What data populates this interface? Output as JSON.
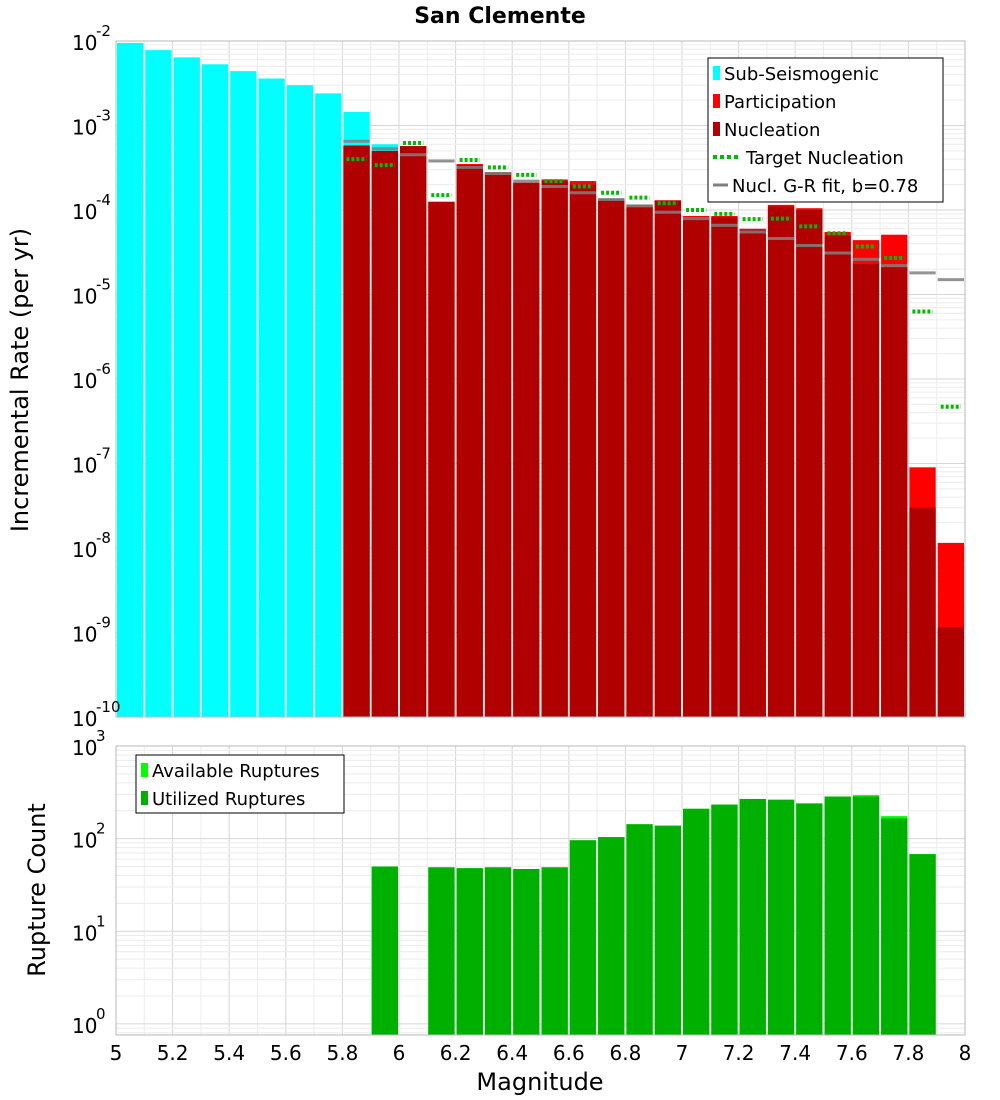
{
  "title": "San Clemente",
  "colors": {
    "sub_seismogenic": "#00ffff",
    "participation": "#ff0000",
    "nucleation": "#b00000",
    "target_nucleation": "#00bb00",
    "gr_fit": "#808080",
    "available": "#00ff00",
    "utilized": "#00b000"
  },
  "chart_data": [
    {
      "type": "bar",
      "title": "San Clemente",
      "xlabel": "Magnitude",
      "ylabel": "Incremental Rate (per yr)",
      "xlim": [
        5,
        8
      ],
      "ylim_log10": [
        -10,
        -2
      ],
      "bin_width": 0.1,
      "y_ticks": [
        {
          "base": "10",
          "exp": "-10"
        },
        {
          "base": "10",
          "exp": "-9"
        },
        {
          "base": "10",
          "exp": "-8"
        },
        {
          "base": "10",
          "exp": "-7"
        },
        {
          "base": "10",
          "exp": "-6"
        },
        {
          "base": "10",
          "exp": "-5"
        },
        {
          "base": "10",
          "exp": "-4"
        },
        {
          "base": "10",
          "exp": "-3"
        },
        {
          "base": "10",
          "exp": "-2"
        }
      ],
      "legend": [
        "Sub-Seismogenic",
        "Participation",
        "Nucleation",
        "Target Nucleation",
        "Nucl. G-R fit, b=0.78"
      ],
      "sub_seismogenic": {
        "x": [
          5.05,
          5.15,
          5.25,
          5.35,
          5.45,
          5.55,
          5.65,
          5.75,
          5.85,
          5.95
        ],
        "values": [
          0.0095,
          0.0078,
          0.0064,
          0.0053,
          0.0044,
          0.0036,
          0.003,
          0.0024,
          0.00145,
          0.0006
        ]
      },
      "participation": {
        "x": [
          5.85,
          5.95,
          6.05,
          6.15,
          6.25,
          6.35,
          6.45,
          6.55,
          6.65,
          6.75,
          6.85,
          6.95,
          7.05,
          7.15,
          7.25,
          7.35,
          7.45,
          7.55,
          7.65,
          7.75,
          7.85,
          7.95
        ],
        "values": [
          0.00058,
          0.0005,
          0.00057,
          0.000125,
          0.00035,
          0.00028,
          0.00021,
          0.00023,
          0.00022,
          0.000135,
          0.000115,
          0.00013,
          8.5e-05,
          8.5e-05,
          6e-05,
          0.000115,
          0.000105,
          5.5e-05,
          4.4e-05,
          5.1e-05,
          9e-08,
          1.15e-08
        ]
      },
      "nucleation": {
        "x": [
          5.85,
          5.95,
          6.05,
          6.15,
          6.25,
          6.35,
          6.45,
          6.55,
          6.65,
          6.75,
          6.85,
          6.95,
          7.05,
          7.15,
          7.25,
          7.35,
          7.45,
          7.55,
          7.65,
          7.75,
          7.85,
          7.95
        ],
        "values": [
          0.00058,
          0.0005,
          0.00057,
          0.000125,
          0.00034,
          0.00028,
          0.00021,
          0.00022,
          0.0002,
          0.00013,
          0.00011,
          0.00013,
          8.2e-05,
          8.2e-05,
          5.8e-05,
          0.00011,
          0.0001,
          5e-05,
          2.3e-05,
          2.1e-05,
          3e-08,
          1.15e-09
        ]
      },
      "target_nucleation": {
        "x": [
          5.85,
          5.95,
          6.05,
          6.15,
          6.25,
          6.35,
          6.45,
          6.55,
          6.65,
          6.75,
          6.85,
          6.95,
          7.05,
          7.15,
          7.25,
          7.35,
          7.45,
          7.55,
          7.65,
          7.75,
          7.85,
          7.95
        ],
        "values": [
          0.0004,
          0.00034,
          0.00062,
          0.00015,
          0.00039,
          0.00032,
          0.00026,
          0.00022,
          0.00019,
          0.00016,
          0.00014,
          0.00012,
          0.0001,
          9e-05,
          7.8e-05,
          7.9e-05,
          6.4e-05,
          5.3e-05,
          3.7e-05,
          2.7e-05,
          6.3e-06,
          4.7e-07
        ]
      },
      "gr_fit": {
        "x": [
          5.85,
          5.95,
          6.05,
          6.15,
          6.25,
          6.35,
          6.45,
          6.55,
          6.65,
          6.75,
          6.85,
          6.95,
          7.05,
          7.15,
          7.25,
          7.35,
          7.45,
          7.55,
          7.65,
          7.75,
          7.85,
          7.95
        ],
        "values": [
          0.00065,
          0.00053,
          0.00045,
          0.00038,
          0.00032,
          0.00027,
          0.00022,
          0.00019,
          0.00016,
          0.000133,
          0.000112,
          9.4e-05,
          7.9e-05,
          6.6e-05,
          5.5e-05,
          4.6e-05,
          3.8e-05,
          3.1e-05,
          2.6e-05,
          2.2e-05,
          1.8e-05,
          1.5e-05
        ]
      }
    },
    {
      "type": "bar",
      "xlabel": "Magnitude",
      "ylabel": "Rupture Count",
      "xlim": [
        5,
        8
      ],
      "ylim_log10": [
        -0.12,
        3
      ],
      "bin_width": 0.1,
      "x_ticks": [
        "5",
        "5.2",
        "5.4",
        "5.6",
        "5.8",
        "6",
        "6.2",
        "6.4",
        "6.6",
        "6.8",
        "7",
        "7.2",
        "7.4",
        "7.6",
        "7.8",
        "8"
      ],
      "y_ticks": [
        {
          "base": "10",
          "exp": "0"
        },
        {
          "base": "10",
          "exp": "1"
        },
        {
          "base": "10",
          "exp": "2"
        },
        {
          "base": "10",
          "exp": "3"
        }
      ],
      "legend": [
        "Available Ruptures",
        "Utilized Ruptures"
      ],
      "available": {
        "x": [
          5.95,
          6.15,
          6.25,
          6.35,
          6.45,
          6.55,
          6.65,
          6.75,
          6.85,
          6.95,
          7.05,
          7.15,
          7.25,
          7.35,
          7.45,
          7.55,
          7.65,
          7.75,
          7.85
        ],
        "values": [
          50,
          49,
          48,
          49,
          47,
          49,
          96,
          104,
          143,
          138,
          210,
          233,
          268,
          263,
          240,
          285,
          295,
          175,
          68
        ]
      },
      "utilized": {
        "x": [
          5.95,
          6.15,
          6.25,
          6.35,
          6.45,
          6.55,
          6.65,
          6.75,
          6.85,
          6.95,
          7.05,
          7.15,
          7.25,
          7.35,
          7.45,
          7.55,
          7.65,
          7.75,
          7.85
        ],
        "values": [
          50,
          49,
          48,
          49,
          47,
          49,
          96,
          104,
          143,
          138,
          210,
          233,
          268,
          263,
          240,
          285,
          285,
          165,
          68
        ]
      }
    }
  ]
}
